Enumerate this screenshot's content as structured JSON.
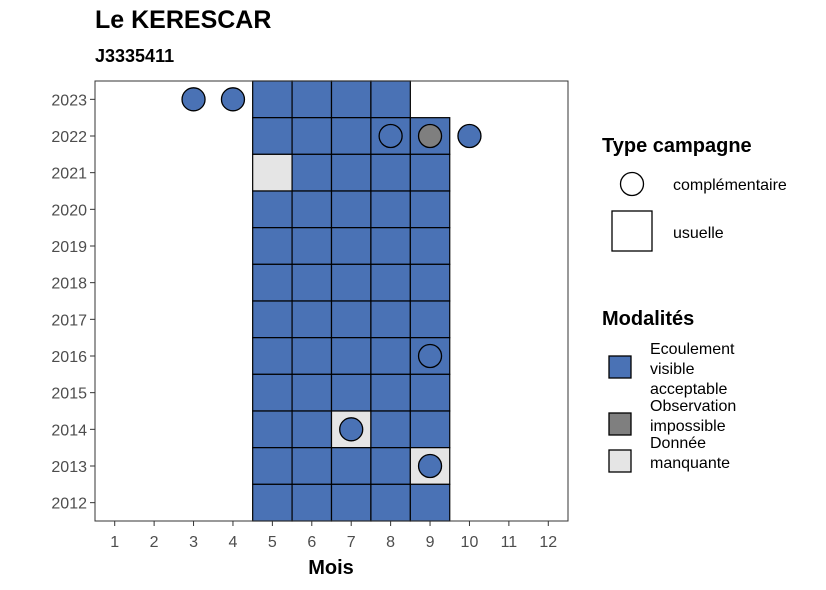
{
  "chart_data": {
    "type": "heatmap",
    "title": "Le KERESCAR",
    "subtitle": "J3335411",
    "xlabel": "Mois",
    "ylabel": "",
    "x_ticks": [
      "1",
      "2",
      "3",
      "4",
      "5",
      "6",
      "7",
      "8",
      "9",
      "10",
      "11",
      "12"
    ],
    "y_ticks": [
      "2012",
      "2013",
      "2014",
      "2015",
      "2016",
      "2017",
      "2018",
      "2019",
      "2020",
      "2021",
      "2022",
      "2023"
    ],
    "xlim": [
      0.5,
      12.5
    ],
    "ylim": [
      2011.5,
      2023.5
    ],
    "colors": {
      "Ecoulement visible acceptable": "#4a72b5",
      "Observation impossible": "#7f7f7f",
      "Donnée manquante": "#e5e5e5"
    },
    "cells": [
      {
        "year": 2023,
        "month": 5,
        "modalite": "Ecoulement visible acceptable"
      },
      {
        "year": 2023,
        "month": 6,
        "modalite": "Ecoulement visible acceptable"
      },
      {
        "year": 2023,
        "month": 7,
        "modalite": "Ecoulement visible acceptable"
      },
      {
        "year": 2023,
        "month": 8,
        "modalite": "Ecoulement visible acceptable"
      },
      {
        "year": 2022,
        "month": 5,
        "modalite": "Ecoulement visible acceptable"
      },
      {
        "year": 2022,
        "month": 6,
        "modalite": "Ecoulement visible acceptable"
      },
      {
        "year": 2022,
        "month": 7,
        "modalite": "Ecoulement visible acceptable"
      },
      {
        "year": 2022,
        "month": 8,
        "modalite": "Ecoulement visible acceptable"
      },
      {
        "year": 2022,
        "month": 9,
        "modalite": "Ecoulement visible acceptable"
      },
      {
        "year": 2021,
        "month": 5,
        "modalite": "Donnée manquante"
      },
      {
        "year": 2021,
        "month": 6,
        "modalite": "Ecoulement visible acceptable"
      },
      {
        "year": 2021,
        "month": 7,
        "modalite": "Ecoulement visible acceptable"
      },
      {
        "year": 2021,
        "month": 8,
        "modalite": "Ecoulement visible acceptable"
      },
      {
        "year": 2021,
        "month": 9,
        "modalite": "Ecoulement visible acceptable"
      },
      {
        "year": 2020,
        "month": 5,
        "modalite": "Ecoulement visible acceptable"
      },
      {
        "year": 2020,
        "month": 6,
        "modalite": "Ecoulement visible acceptable"
      },
      {
        "year": 2020,
        "month": 7,
        "modalite": "Ecoulement visible acceptable"
      },
      {
        "year": 2020,
        "month": 8,
        "modalite": "Ecoulement visible acceptable"
      },
      {
        "year": 2020,
        "month": 9,
        "modalite": "Ecoulement visible acceptable"
      },
      {
        "year": 2019,
        "month": 5,
        "modalite": "Ecoulement visible acceptable"
      },
      {
        "year": 2019,
        "month": 6,
        "modalite": "Ecoulement visible acceptable"
      },
      {
        "year": 2019,
        "month": 7,
        "modalite": "Ecoulement visible acceptable"
      },
      {
        "year": 2019,
        "month": 8,
        "modalite": "Ecoulement visible acceptable"
      },
      {
        "year": 2019,
        "month": 9,
        "modalite": "Ecoulement visible acceptable"
      },
      {
        "year": 2018,
        "month": 5,
        "modalite": "Ecoulement visible acceptable"
      },
      {
        "year": 2018,
        "month": 6,
        "modalite": "Ecoulement visible acceptable"
      },
      {
        "year": 2018,
        "month": 7,
        "modalite": "Ecoulement visible acceptable"
      },
      {
        "year": 2018,
        "month": 8,
        "modalite": "Ecoulement visible acceptable"
      },
      {
        "year": 2018,
        "month": 9,
        "modalite": "Ecoulement visible acceptable"
      },
      {
        "year": 2017,
        "month": 5,
        "modalite": "Ecoulement visible acceptable"
      },
      {
        "year": 2017,
        "month": 6,
        "modalite": "Ecoulement visible acceptable"
      },
      {
        "year": 2017,
        "month": 7,
        "modalite": "Ecoulement visible acceptable"
      },
      {
        "year": 2017,
        "month": 8,
        "modalite": "Ecoulement visible acceptable"
      },
      {
        "year": 2017,
        "month": 9,
        "modalite": "Ecoulement visible acceptable"
      },
      {
        "year": 2016,
        "month": 5,
        "modalite": "Ecoulement visible acceptable"
      },
      {
        "year": 2016,
        "month": 6,
        "modalite": "Ecoulement visible acceptable"
      },
      {
        "year": 2016,
        "month": 7,
        "modalite": "Ecoulement visible acceptable"
      },
      {
        "year": 2016,
        "month": 8,
        "modalite": "Ecoulement visible acceptable"
      },
      {
        "year": 2016,
        "month": 9,
        "modalite": "Ecoulement visible acceptable"
      },
      {
        "year": 2015,
        "month": 5,
        "modalite": "Ecoulement visible acceptable"
      },
      {
        "year": 2015,
        "month": 6,
        "modalite": "Ecoulement visible acceptable"
      },
      {
        "year": 2015,
        "month": 7,
        "modalite": "Ecoulement visible acceptable"
      },
      {
        "year": 2015,
        "month": 8,
        "modalite": "Ecoulement visible acceptable"
      },
      {
        "year": 2015,
        "month": 9,
        "modalite": "Ecoulement visible acceptable"
      },
      {
        "year": 2014,
        "month": 5,
        "modalite": "Ecoulement visible acceptable"
      },
      {
        "year": 2014,
        "month": 6,
        "modalite": "Ecoulement visible acceptable"
      },
      {
        "year": 2014,
        "month": 7,
        "modalite": "Donnée manquante"
      },
      {
        "year": 2014,
        "month": 8,
        "modalite": "Ecoulement visible acceptable"
      },
      {
        "year": 2014,
        "month": 9,
        "modalite": "Ecoulement visible acceptable"
      },
      {
        "year": 2013,
        "month": 5,
        "modalite": "Ecoulement visible acceptable"
      },
      {
        "year": 2013,
        "month": 6,
        "modalite": "Ecoulement visible acceptable"
      },
      {
        "year": 2013,
        "month": 7,
        "modalite": "Ecoulement visible acceptable"
      },
      {
        "year": 2013,
        "month": 8,
        "modalite": "Ecoulement visible acceptable"
      },
      {
        "year": 2013,
        "month": 9,
        "modalite": "Donnée manquante"
      },
      {
        "year": 2012,
        "month": 5,
        "modalite": "Ecoulement visible acceptable"
      },
      {
        "year": 2012,
        "month": 6,
        "modalite": "Ecoulement visible acceptable"
      },
      {
        "year": 2012,
        "month": 7,
        "modalite": "Ecoulement visible acceptable"
      },
      {
        "year": 2012,
        "month": 8,
        "modalite": "Ecoulement visible acceptable"
      },
      {
        "year": 2012,
        "month": 9,
        "modalite": "Ecoulement visible acceptable"
      }
    ],
    "points": [
      {
        "year": 2023,
        "month": 3,
        "modalite": "Ecoulement visible acceptable"
      },
      {
        "year": 2023,
        "month": 4,
        "modalite": "Ecoulement visible acceptable"
      },
      {
        "year": 2022,
        "month": 8,
        "modalite": "Ecoulement visible acceptable"
      },
      {
        "year": 2022,
        "month": 9,
        "modalite": "Observation impossible"
      },
      {
        "year": 2022,
        "month": 10,
        "modalite": "Ecoulement visible acceptable"
      },
      {
        "year": 2016,
        "month": 9,
        "modalite": "Ecoulement visible acceptable"
      },
      {
        "year": 2014,
        "month": 7,
        "modalite": "Ecoulement visible acceptable"
      },
      {
        "year": 2013,
        "month": 9,
        "modalite": "Ecoulement visible acceptable"
      }
    ],
    "legend_type": {
      "title": "Type campagne",
      "items": [
        "complémentaire",
        "usuelle"
      ]
    },
    "legend_modalites": {
      "title": "Modalités",
      "items": [
        {
          "lines": [
            "Ecoulement",
            "visible",
            "acceptable"
          ],
          "color": "#4a72b5"
        },
        {
          "lines": [
            "Observation",
            "impossible"
          ],
          "color": "#7f7f7f"
        },
        {
          "lines": [
            "Donnée",
            "manquante"
          ],
          "color": "#e5e5e5"
        }
      ]
    },
    "legend_position": "right"
  }
}
